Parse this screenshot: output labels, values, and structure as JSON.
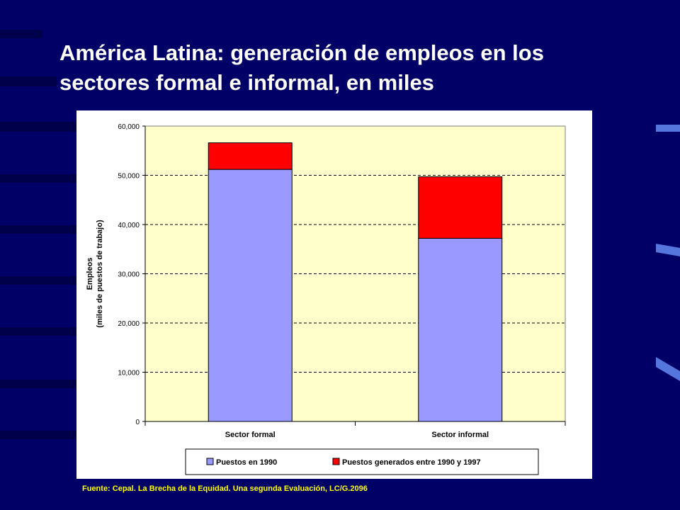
{
  "slide": {
    "title_line1": "América Latina: generación de empleos en los",
    "title_line2": "sectores formal e informal, en miles",
    "source": "Fuente: Cepal. La Brecha de la Equidad. Una segunda Evaluación, LC/G.2096"
  },
  "colors": {
    "background": "#000066",
    "stripe": "#00004a",
    "plot_area": "#ffffcc",
    "series_1990": "#9999ff",
    "series_generated": "#ff0000",
    "title": "#ffffff",
    "source": "#ffff00"
  },
  "chart_data": {
    "type": "bar",
    "stacked": true,
    "title": "",
    "xlabel": "",
    "ylabel_line1": "Empleos",
    "ylabel_line2": "(miles de puestos de trabajo)",
    "ylim": [
      0,
      60000
    ],
    "yticks": [
      0,
      10000,
      20000,
      30000,
      40000,
      50000,
      60000
    ],
    "ytick_labels": [
      "0",
      "10,000",
      "20,000",
      "30,000",
      "40,000",
      "50,000",
      "60,000"
    ],
    "grid": true,
    "legend_position": "bottom",
    "categories": [
      "Sector formal",
      "Sector informal"
    ],
    "series": [
      {
        "name": "Puestos en 1990",
        "values": [
          51200,
          37200
        ],
        "color": "#9999ff"
      },
      {
        "name": "Puestos generados entre 1990 y 1997",
        "values": [
          5400,
          12500
        ],
        "color": "#ff0000"
      }
    ]
  }
}
